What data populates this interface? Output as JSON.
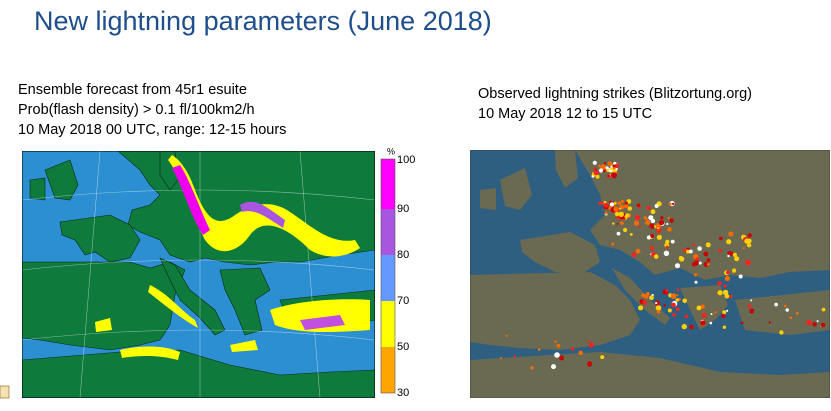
{
  "title": "New lightning parameters (June 2018)",
  "left_panel": {
    "caption": [
      "Ensemble forecast from 45r1 esuite",
      "Prob(flash density) > 0.1 fl/100km2/h",
      "10 May 2018 00 UTC, range: 12-15 hours"
    ],
    "colorbar": {
      "unit": "%",
      "labels": [
        100,
        90,
        80,
        70,
        50,
        30
      ]
    }
  },
  "right_panel": {
    "caption": [
      "Observed lightning strikes (Blitzortung.org)",
      "10 May 2018 12 to 15 UTC"
    ]
  }
}
